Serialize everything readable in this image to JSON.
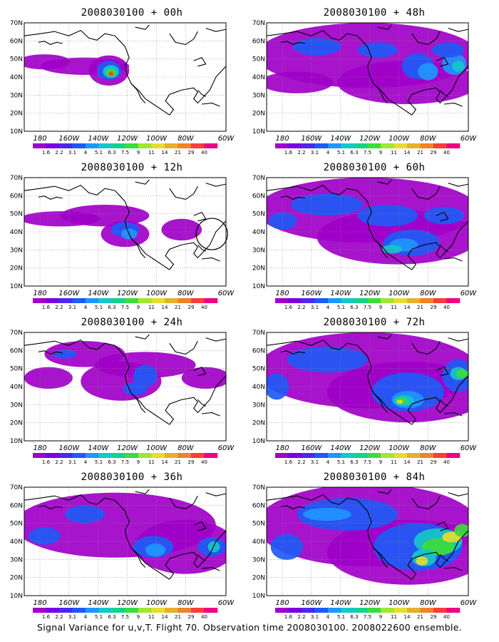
{
  "footer": "Signal Variance for u,v,T. Flight 70. Observation time 2008030100. 2008022600 ensemble.",
  "lat_labels": [
    "70N",
    "60N",
    "50N",
    "40N",
    "30N",
    "20N",
    "10N"
  ],
  "lon_labels": [
    "180",
    "160W",
    "140W",
    "120W",
    "100W",
    "80W",
    "60W"
  ],
  "colorbar": {
    "labels": [
      "1.6",
      "2.2",
      "3.1",
      "4",
      "5.1",
      "6.3",
      "7.5",
      "9",
      "11",
      "14",
      "21",
      "29",
      "40"
    ],
    "colors": [
      "#a000c8",
      "#7a00e0",
      "#4b28f0",
      "#1e5af5",
      "#1e96ff",
      "#14c8c8",
      "#14d28c",
      "#3cdc3c",
      "#a0e632",
      "#e6dc32",
      "#e6af2d",
      "#f08228",
      "#fa3c3c",
      "#f00082"
    ]
  },
  "panels": [
    {
      "title": "2008030100 + 00h",
      "region": "panel-00h"
    },
    {
      "title": "2008030100 + 48h",
      "region": "panel-48h"
    },
    {
      "title": "2008030100 + 12h",
      "region": "panel-12h"
    },
    {
      "title": "2008030100 + 60h",
      "region": "panel-60h"
    },
    {
      "title": "2008030100 + 24h",
      "region": "panel-24h"
    },
    {
      "title": "2008030100 + 72h",
      "region": "panel-72h"
    },
    {
      "title": "2008030100 + 36h",
      "region": "panel-36h"
    },
    {
      "title": "2008030100 + 84h",
      "region": "panel-84h"
    }
  ],
  "circle_annotation_panel": "panel-12h"
}
